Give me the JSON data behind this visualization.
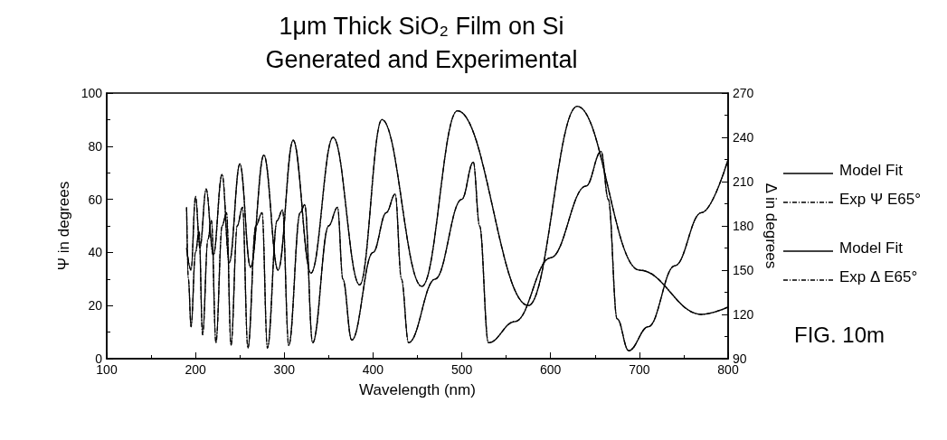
{
  "chart_data": {
    "type": "line",
    "title": "1μm Thick SiO₂ Film on Si",
    "subtitle": "Generated and Experimental",
    "xlabel": "Wavelength (nm)",
    "ylabel": "Ψ in degrees",
    "y2label": "Δ in degrees",
    "xlim": [
      100,
      800
    ],
    "xticks": [
      100,
      200,
      300,
      400,
      500,
      600,
      700,
      800
    ],
    "ylim": [
      0,
      100
    ],
    "yticks": [
      0,
      20,
      40,
      60,
      80,
      100
    ],
    "y2lim": [
      90,
      270
    ],
    "y2ticks": [
      90,
      120,
      150,
      180,
      210,
      240,
      270
    ],
    "legend": "right",
    "annotations": [
      "FIG. 10m"
    ],
    "series": [
      {
        "name": "Model Fit",
        "color": "#000000",
        "line_style": "solid",
        "x": [
          190,
          192,
          195,
          200,
          204,
          208,
          214,
          218,
          223,
          230,
          235,
          240,
          247,
          253,
          259,
          268,
          275,
          281,
          292,
          298,
          305,
          318,
          323,
          332,
          350,
          360,
          366,
          376,
          400,
          415,
          425,
          432,
          440,
          470,
          500,
          513,
          520,
          530,
          560,
          600,
          640,
          657,
          665,
          675,
          688,
          710,
          740,
          770,
          800
        ],
        "values": [
          57,
          30,
          12,
          40,
          48,
          9,
          45,
          52,
          6,
          50,
          55,
          5,
          50,
          57,
          4,
          50,
          55,
          4,
          52,
          56,
          5,
          55,
          58,
          6,
          50,
          57,
          30,
          7,
          40,
          55,
          62,
          30,
          6,
          30,
          60,
          74,
          50,
          6,
          14,
          38,
          65,
          78,
          60,
          15,
          3,
          12,
          35,
          55,
          75
        ]
      },
      {
        "name": "Exp Ψ E65°",
        "color": "#000000",
        "line_style": "dashed",
        "x": [
          190,
          192,
          195,
          200,
          204,
          208,
          214,
          218,
          223,
          230,
          235,
          240,
          247,
          253,
          259,
          268,
          275,
          281,
          292,
          298,
          305,
          318,
          323,
          332,
          350,
          360,
          366,
          376,
          400,
          415,
          425,
          432,
          440,
          470,
          500,
          513,
          520,
          530,
          560,
          600,
          640,
          657,
          665,
          675,
          688,
          710,
          740,
          770,
          800
        ],
        "values": [
          57,
          30,
          12,
          40,
          48,
          9,
          45,
          52,
          6,
          50,
          55,
          5,
          50,
          57,
          4,
          50,
          55,
          4,
          52,
          56,
          5,
          55,
          58,
          6,
          50,
          57,
          30,
          7,
          40,
          55,
          62,
          30,
          6,
          30,
          60,
          74,
          50,
          6,
          14,
          38,
          65,
          78,
          60,
          15,
          3,
          12,
          35,
          55,
          75
        ]
      },
      {
        "name": "Model Fit",
        "color": "#000000",
        "line_style": "solid",
        "axis": "y2",
        "x": [
          190,
          195,
          200,
          205,
          212,
          220,
          230,
          238,
          250,
          262,
          277,
          293,
          310,
          330,
          355,
          385,
          410,
          455,
          495,
          575,
          630,
          700,
          770,
          800
        ],
        "values": [
          165,
          150,
          200,
          165,
          205,
          160,
          215,
          155,
          222,
          152,
          228,
          150,
          238,
          148,
          240,
          140,
          252,
          139,
          258,
          126,
          261,
          150,
          120,
          125
        ]
      },
      {
        "name": "Exp Δ E65°",
        "color": "#000000",
        "line_style": "dashed",
        "axis": "y2",
        "x": [
          190,
          195,
          200,
          205,
          212,
          220,
          230,
          238,
          250,
          262,
          277,
          293,
          310,
          330,
          355,
          385,
          410,
          455,
          495,
          575,
          630,
          700,
          770,
          800
        ],
        "values": [
          165,
          150,
          200,
          165,
          205,
          160,
          215,
          155,
          222,
          152,
          228,
          150,
          238,
          148,
          240,
          140,
          252,
          139,
          258,
          126,
          261,
          150,
          120,
          125
        ]
      }
    ]
  }
}
